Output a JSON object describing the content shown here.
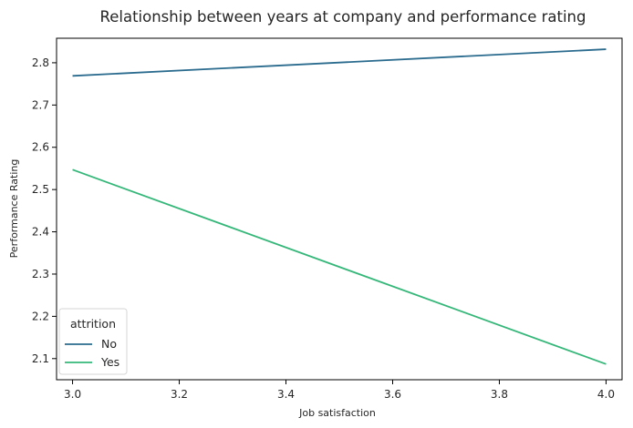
{
  "chart_data": {
    "type": "line",
    "title": "Relationship between years at company and performance rating",
    "xlabel": "Job satisfaction",
    "ylabel": "Performance Rating",
    "xlim": [
      2.97,
      4.03
    ],
    "ylim": [
      2.05,
      2.858
    ],
    "x_ticks": [
      "3.0",
      "3.2",
      "3.4",
      "3.6",
      "3.8",
      "4.0"
    ],
    "y_ticks": [
      "2.1",
      "2.2",
      "2.3",
      "2.4",
      "2.5",
      "2.6",
      "2.7",
      "2.8"
    ],
    "grid": false,
    "legend": {
      "title": "attrition",
      "placement": "bottom-left"
    },
    "series": [
      {
        "name": "No",
        "color": "#2a6b8e",
        "x": [
          3.0,
          4.0
        ],
        "y": [
          2.769,
          2.832
        ]
      },
      {
        "name": "Yes",
        "color": "#35b779",
        "x": [
          3.0,
          4.0
        ],
        "y": [
          2.547,
          2.087
        ]
      }
    ]
  }
}
